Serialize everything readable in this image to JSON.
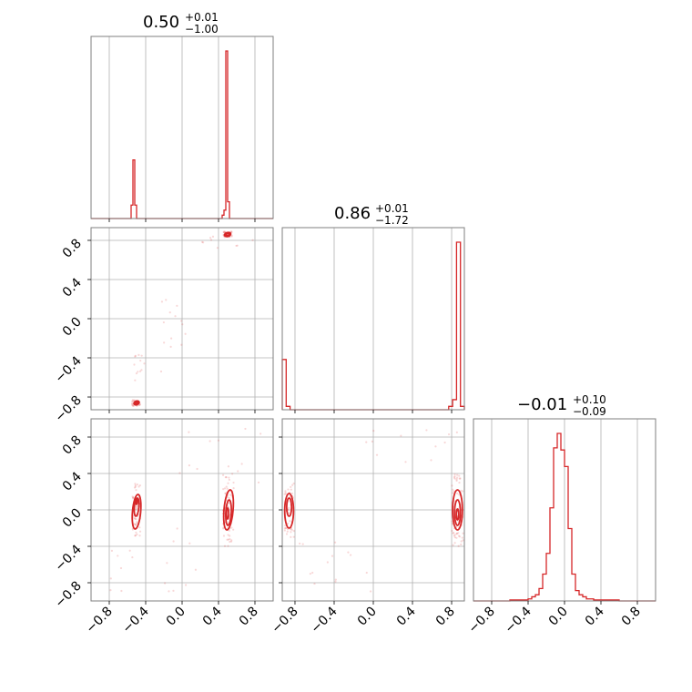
{
  "chart_data": {
    "type": "corner",
    "color": "#d62728",
    "grid": true,
    "parameters": [
      {
        "title_value": "0.50",
        "title_plus": "+0.01",
        "title_minus": "−1.00"
      },
      {
        "title_value": "0.86",
        "title_plus": "+0.01",
        "title_minus": "−1.72"
      },
      {
        "title_value": "−0.01",
        "title_plus": "+0.10",
        "title_minus": "−0.09"
      }
    ],
    "diagonal_ranges": [
      [
        -1.0,
        1.0
      ],
      [
        -0.93,
        0.93
      ],
      [
        -1.0,
        1.0
      ]
    ],
    "ticks": {
      "x": [
        {
          "value": -0.8,
          "label": "−0.8"
        },
        {
          "value": -0.4,
          "label": "−0.4"
        },
        {
          "value": 0.0,
          "label": "0.0"
        },
        {
          "value": 0.4,
          "label": "0.4"
        },
        {
          "value": 0.8,
          "label": "0.8"
        }
      ],
      "y0": [
        {
          "value": 0.8,
          "label": "0.8"
        },
        {
          "value": 0.4,
          "label": "0.4"
        },
        {
          "value": 0.0,
          "label": "0.0"
        },
        {
          "value": -0.4,
          "label": "−0.4"
        },
        {
          "value": -0.8,
          "label": "−0.8"
        }
      ],
      "x_labels_bottom": [
        [
          {
            "value": -0.8,
            "label": "−0.8"
          },
          {
            "value": -0.4,
            "label": "−0.4"
          },
          {
            "value": 0.0,
            "label": "0.0"
          },
          {
            "value": 0.4,
            "label": "0.4"
          },
          {
            "value": 0.8,
            "label": "0.8"
          }
        ],
        [
          {
            "value": -0.8,
            "label": "−0.8"
          },
          {
            "value": -0.4,
            "label": "−0.4"
          },
          {
            "value": 0.0,
            "label": "0.0"
          },
          {
            "value": 0.4,
            "label": "0.4"
          },
          {
            "value": 0.8,
            "label": "0.8"
          }
        ],
        [
          {
            "value": -0.8,
            "label": "−0.8"
          },
          {
            "value": -0.4,
            "label": "−0.4"
          },
          {
            "value": 0.0,
            "label": "0.0"
          },
          {
            "value": 0.4,
            "label": "0.4"
          },
          {
            "value": 0.8,
            "label": "0.8"
          }
        ]
      ]
    },
    "histograms": [
      {
        "bin_edges": [
          -0.56,
          -0.54,
          -0.52,
          -0.5,
          -0.48,
          -0.46,
          0.44,
          0.46,
          0.48,
          0.5,
          0.52,
          0.54,
          0.56
        ],
        "counts": [
          0.08,
          0.35,
          0.08,
          0,
          0,
          0,
          0.02,
          0.05,
          1.0,
          0.1,
          0,
          0
        ],
        "note_counts_relative": true
      },
      {
        "bin_edges": [
          -0.93,
          -0.89,
          -0.85,
          -0.81,
          0.77,
          0.81,
          0.85,
          0.89,
          0.93
        ],
        "counts": [
          0.3,
          0.02,
          0,
          0,
          0.02,
          0.06,
          1.0,
          0.02
        ],
        "note_counts_relative": true
      },
      {
        "bin_edges": [
          -1.0,
          -0.6,
          -0.4,
          -0.36,
          -0.32,
          -0.28,
          -0.24,
          -0.2,
          -0.16,
          -0.12,
          -0.08,
          -0.04,
          0.0,
          0.04,
          0.08,
          0.12,
          0.16,
          0.2,
          0.24,
          0.28,
          0.32,
          0.4,
          0.6,
          1.0
        ],
        "counts": [
          0.0,
          0.005,
          0.01,
          0.02,
          0.03,
          0.06,
          0.13,
          0.23,
          0.45,
          0.74,
          0.81,
          0.73,
          0.65,
          0.35,
          0.13,
          0.05,
          0.03,
          0.02,
          0.01,
          0.01,
          0.005,
          0.005,
          0.0
        ],
        "note_counts_relative": true
      }
    ],
    "joint": [
      {
        "row": 1,
        "col": 0,
        "contours": [
          {
            "cx": 0.5,
            "cy": 0.86,
            "rx": 0.035,
            "ry": 0.02,
            "rot": -15
          },
          {
            "cx": 0.5,
            "cy": 0.86,
            "rx": 0.02,
            "ry": 0.012,
            "rot": -15
          },
          {
            "cx": -0.5,
            "cy": -0.86,
            "rx": 0.03,
            "ry": 0.018,
            "rot": -20
          },
          {
            "cx": -0.5,
            "cy": -0.86,
            "rx": 0.015,
            "ry": 0.009,
            "rot": -20
          }
        ]
      },
      {
        "row": 2,
        "col": 0,
        "contours": [
          {
            "cx": -0.5,
            "cy": -0.02,
            "rx": 0.045,
            "ry": 0.19,
            "rot": 5
          },
          {
            "cx": -0.5,
            "cy": 0.03,
            "rx": 0.025,
            "ry": 0.1,
            "rot": 5
          },
          {
            "cx": -0.5,
            "cy": 0.09,
            "rx": 0.008,
            "ry": 0.03,
            "rot": 0
          },
          {
            "cx": 0.51,
            "cy": 0.0,
            "rx": 0.05,
            "ry": 0.22,
            "rot": 5
          },
          {
            "cx": 0.51,
            "cy": -0.03,
            "rx": 0.03,
            "ry": 0.14,
            "rot": 3
          },
          {
            "cx": 0.5,
            "cy": -0.04,
            "rx": 0.012,
            "ry": 0.06,
            "rot": 0
          }
        ]
      },
      {
        "row": 2,
        "col": 1,
        "contours": [
          {
            "cx": -0.86,
            "cy": -0.01,
            "rx": 0.045,
            "ry": 0.19,
            "rot": 0
          },
          {
            "cx": -0.86,
            "cy": 0.03,
            "rx": 0.025,
            "ry": 0.1,
            "rot": 0
          },
          {
            "cx": 0.86,
            "cy": 0.0,
            "rx": 0.05,
            "ry": 0.22,
            "rot": 0
          },
          {
            "cx": 0.86,
            "cy": -0.03,
            "rx": 0.03,
            "ry": 0.14,
            "rot": 0
          },
          {
            "cx": 0.86,
            "cy": -0.05,
            "rx": 0.012,
            "ry": 0.06,
            "rot": 0
          }
        ]
      }
    ]
  }
}
